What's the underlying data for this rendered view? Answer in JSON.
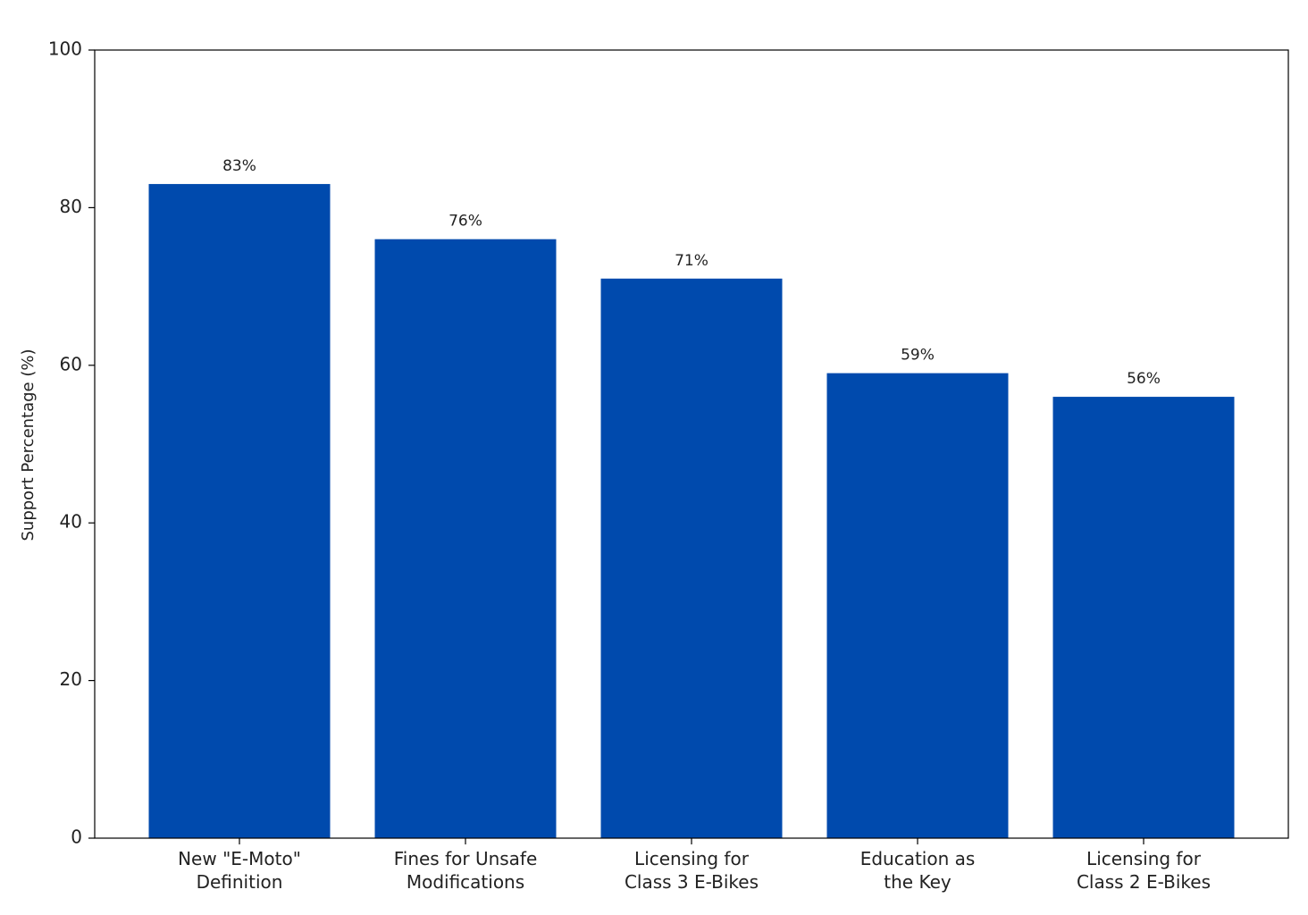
{
  "chart_data": {
    "type": "bar",
    "categories": [
      "New \"E-Moto\"\nDefinition",
      "Fines for Unsafe\nModifications",
      "Licensing for\nClass 3 E-Bikes",
      "Education as\nthe Key",
      "Licensing for\nClass 2 E-Bikes"
    ],
    "values": [
      83,
      76,
      71,
      59,
      56
    ],
    "value_labels": [
      "83%",
      "76%",
      "71%",
      "59%",
      "56%"
    ],
    "color": "#004aad",
    "ylabel": "Support Percentage (%)",
    "ylim": [
      0,
      100
    ],
    "yticks": [
      0,
      20,
      40,
      60,
      80,
      100
    ],
    "grid": false
  }
}
